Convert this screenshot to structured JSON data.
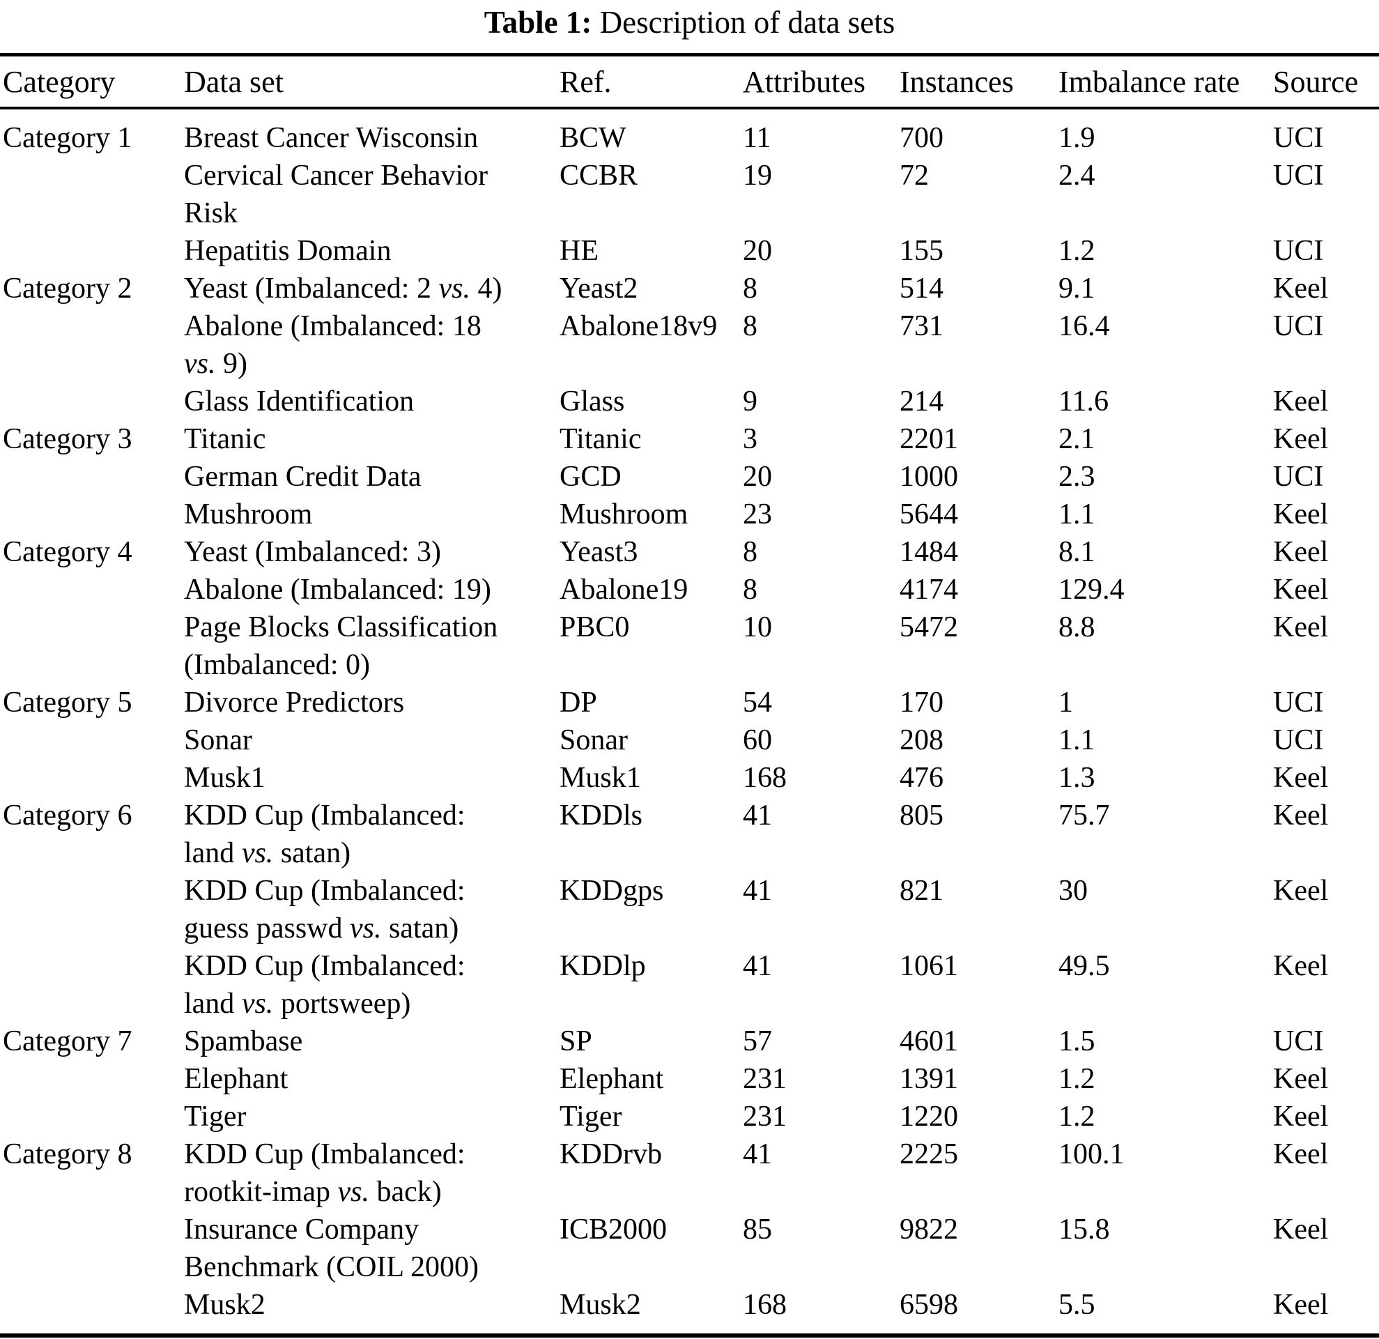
{
  "title": {
    "label": "Table 1:",
    "text": "Description of data sets"
  },
  "table": {
    "headers": [
      "Category",
      "Data set",
      "Ref.",
      "Attributes",
      "Instances",
      "Imbalance rate",
      "Source"
    ],
    "rows": [
      {
        "category": "Category 1",
        "dataset_lines": [
          "Breast Cancer Wisconsin"
        ],
        "ref": "BCW",
        "attributes": "11",
        "instances": "700",
        "imbalance_rate": "1.9",
        "source": "UCI"
      },
      {
        "category": "",
        "dataset_lines": [
          "Cervical Cancer Behavior",
          "Risk"
        ],
        "ref": "CCBR",
        "attributes": "19",
        "instances": "72",
        "imbalance_rate": "2.4",
        "source": "UCI"
      },
      {
        "category": "",
        "dataset_lines": [
          "Hepatitis Domain"
        ],
        "ref": "HE",
        "attributes": "20",
        "instances": "155",
        "imbalance_rate": "1.2",
        "source": "UCI"
      },
      {
        "category": "Category 2",
        "dataset_lines": [
          "Yeast (Imbalanced: 2 vs. 4)"
        ],
        "ref": "Yeast2",
        "attributes": "8",
        "instances": "514",
        "imbalance_rate": "9.1",
        "source": "Keel"
      },
      {
        "category": "",
        "dataset_lines": [
          "Abalone (Imbalanced: 18",
          "vs. 9)"
        ],
        "ref": "Abalone18v9",
        "attributes": "8",
        "instances": "731",
        "imbalance_rate": "16.4",
        "source": "UCI"
      },
      {
        "category": "",
        "dataset_lines": [
          "Glass Identification"
        ],
        "ref": "Glass",
        "attributes": "9",
        "instances": "214",
        "imbalance_rate": "11.6",
        "source": "Keel"
      },
      {
        "category": "Category 3",
        "dataset_lines": [
          "Titanic"
        ],
        "ref": "Titanic",
        "attributes": "3",
        "instances": "2201",
        "imbalance_rate": "2.1",
        "source": "Keel"
      },
      {
        "category": "",
        "dataset_lines": [
          "German Credit Data"
        ],
        "ref": "GCD",
        "attributes": "20",
        "instances": "1000",
        "imbalance_rate": "2.3",
        "source": "UCI"
      },
      {
        "category": "",
        "dataset_lines": [
          "Mushroom"
        ],
        "ref": "Mushroom",
        "attributes": "23",
        "instances": "5644",
        "imbalance_rate": "1.1",
        "source": "Keel"
      },
      {
        "category": "Category 4",
        "dataset_lines": [
          "Yeast (Imbalanced: 3)"
        ],
        "ref": "Yeast3",
        "attributes": "8",
        "instances": "1484",
        "imbalance_rate": "8.1",
        "source": "Keel"
      },
      {
        "category": "",
        "dataset_lines": [
          "Abalone (Imbalanced: 19)"
        ],
        "ref": "Abalone19",
        "attributes": "8",
        "instances": "4174",
        "imbalance_rate": "129.4",
        "source": "Keel"
      },
      {
        "category": "",
        "dataset_lines": [
          "Page Blocks Classification",
          "(Imbalanced: 0)"
        ],
        "ref": "PBC0",
        "attributes": "10",
        "instances": "5472",
        "imbalance_rate": "8.8",
        "source": "Keel"
      },
      {
        "category": "Category 5",
        "dataset_lines": [
          "Divorce Predictors"
        ],
        "ref": "DP",
        "attributes": "54",
        "instances": "170",
        "imbalance_rate": "1",
        "source": "UCI"
      },
      {
        "category": "",
        "dataset_lines": [
          "Sonar"
        ],
        "ref": "Sonar",
        "attributes": "60",
        "instances": "208",
        "imbalance_rate": "1.1",
        "source": "UCI"
      },
      {
        "category": "",
        "dataset_lines": [
          "Musk1"
        ],
        "ref": "Musk1",
        "attributes": "168",
        "instances": "476",
        "imbalance_rate": "1.3",
        "source": "Keel"
      },
      {
        "category": "Category 6",
        "dataset_lines": [
          "KDD Cup (Imbalanced:",
          "land vs. satan)"
        ],
        "ref": "KDDls",
        "attributes": "41",
        "instances": "805",
        "imbalance_rate": "75.7",
        "source": "Keel"
      },
      {
        "category": "",
        "dataset_lines": [
          "KDD Cup (Imbalanced:",
          "guess passwd vs. satan)"
        ],
        "ref": "KDDgps",
        "attributes": "41",
        "instances": "821",
        "imbalance_rate": "30",
        "source": "Keel"
      },
      {
        "category": "",
        "dataset_lines": [
          "KDD Cup (Imbalanced:",
          "land vs. portsweep)"
        ],
        "ref": "KDDlp",
        "attributes": "41",
        "instances": "1061",
        "imbalance_rate": "49.5",
        "source": "Keel"
      },
      {
        "category": "Category 7",
        "dataset_lines": [
          "Spambase"
        ],
        "ref": "SP",
        "attributes": "57",
        "instances": "4601",
        "imbalance_rate": "1.5",
        "source": "UCI"
      },
      {
        "category": "",
        "dataset_lines": [
          "Elephant"
        ],
        "ref": "Elephant",
        "attributes": "231",
        "instances": "1391",
        "imbalance_rate": "1.2",
        "source": "Keel"
      },
      {
        "category": "",
        "dataset_lines": [
          "Tiger"
        ],
        "ref": "Tiger",
        "attributes": "231",
        "instances": "1220",
        "imbalance_rate": "1.2",
        "source": "Keel"
      },
      {
        "category": "Category 8",
        "dataset_lines": [
          "KDD Cup (Imbalanced:",
          "rootkit-imap vs. back)"
        ],
        "ref": "KDDrvb",
        "attributes": "41",
        "instances": "2225",
        "imbalance_rate": "100.1",
        "source": "Keel"
      },
      {
        "category": "",
        "dataset_lines": [
          "Insurance Company",
          "Benchmark (COIL 2000)"
        ],
        "ref": "ICB2000",
        "attributes": "85",
        "instances": "9822",
        "imbalance_rate": "15.8",
        "source": "Keel"
      },
      {
        "category": "",
        "dataset_lines": [
          "Musk2"
        ],
        "ref": "Musk2",
        "attributes": "168",
        "instances": "6598",
        "imbalance_rate": "5.5",
        "source": "Keel"
      }
    ]
  }
}
